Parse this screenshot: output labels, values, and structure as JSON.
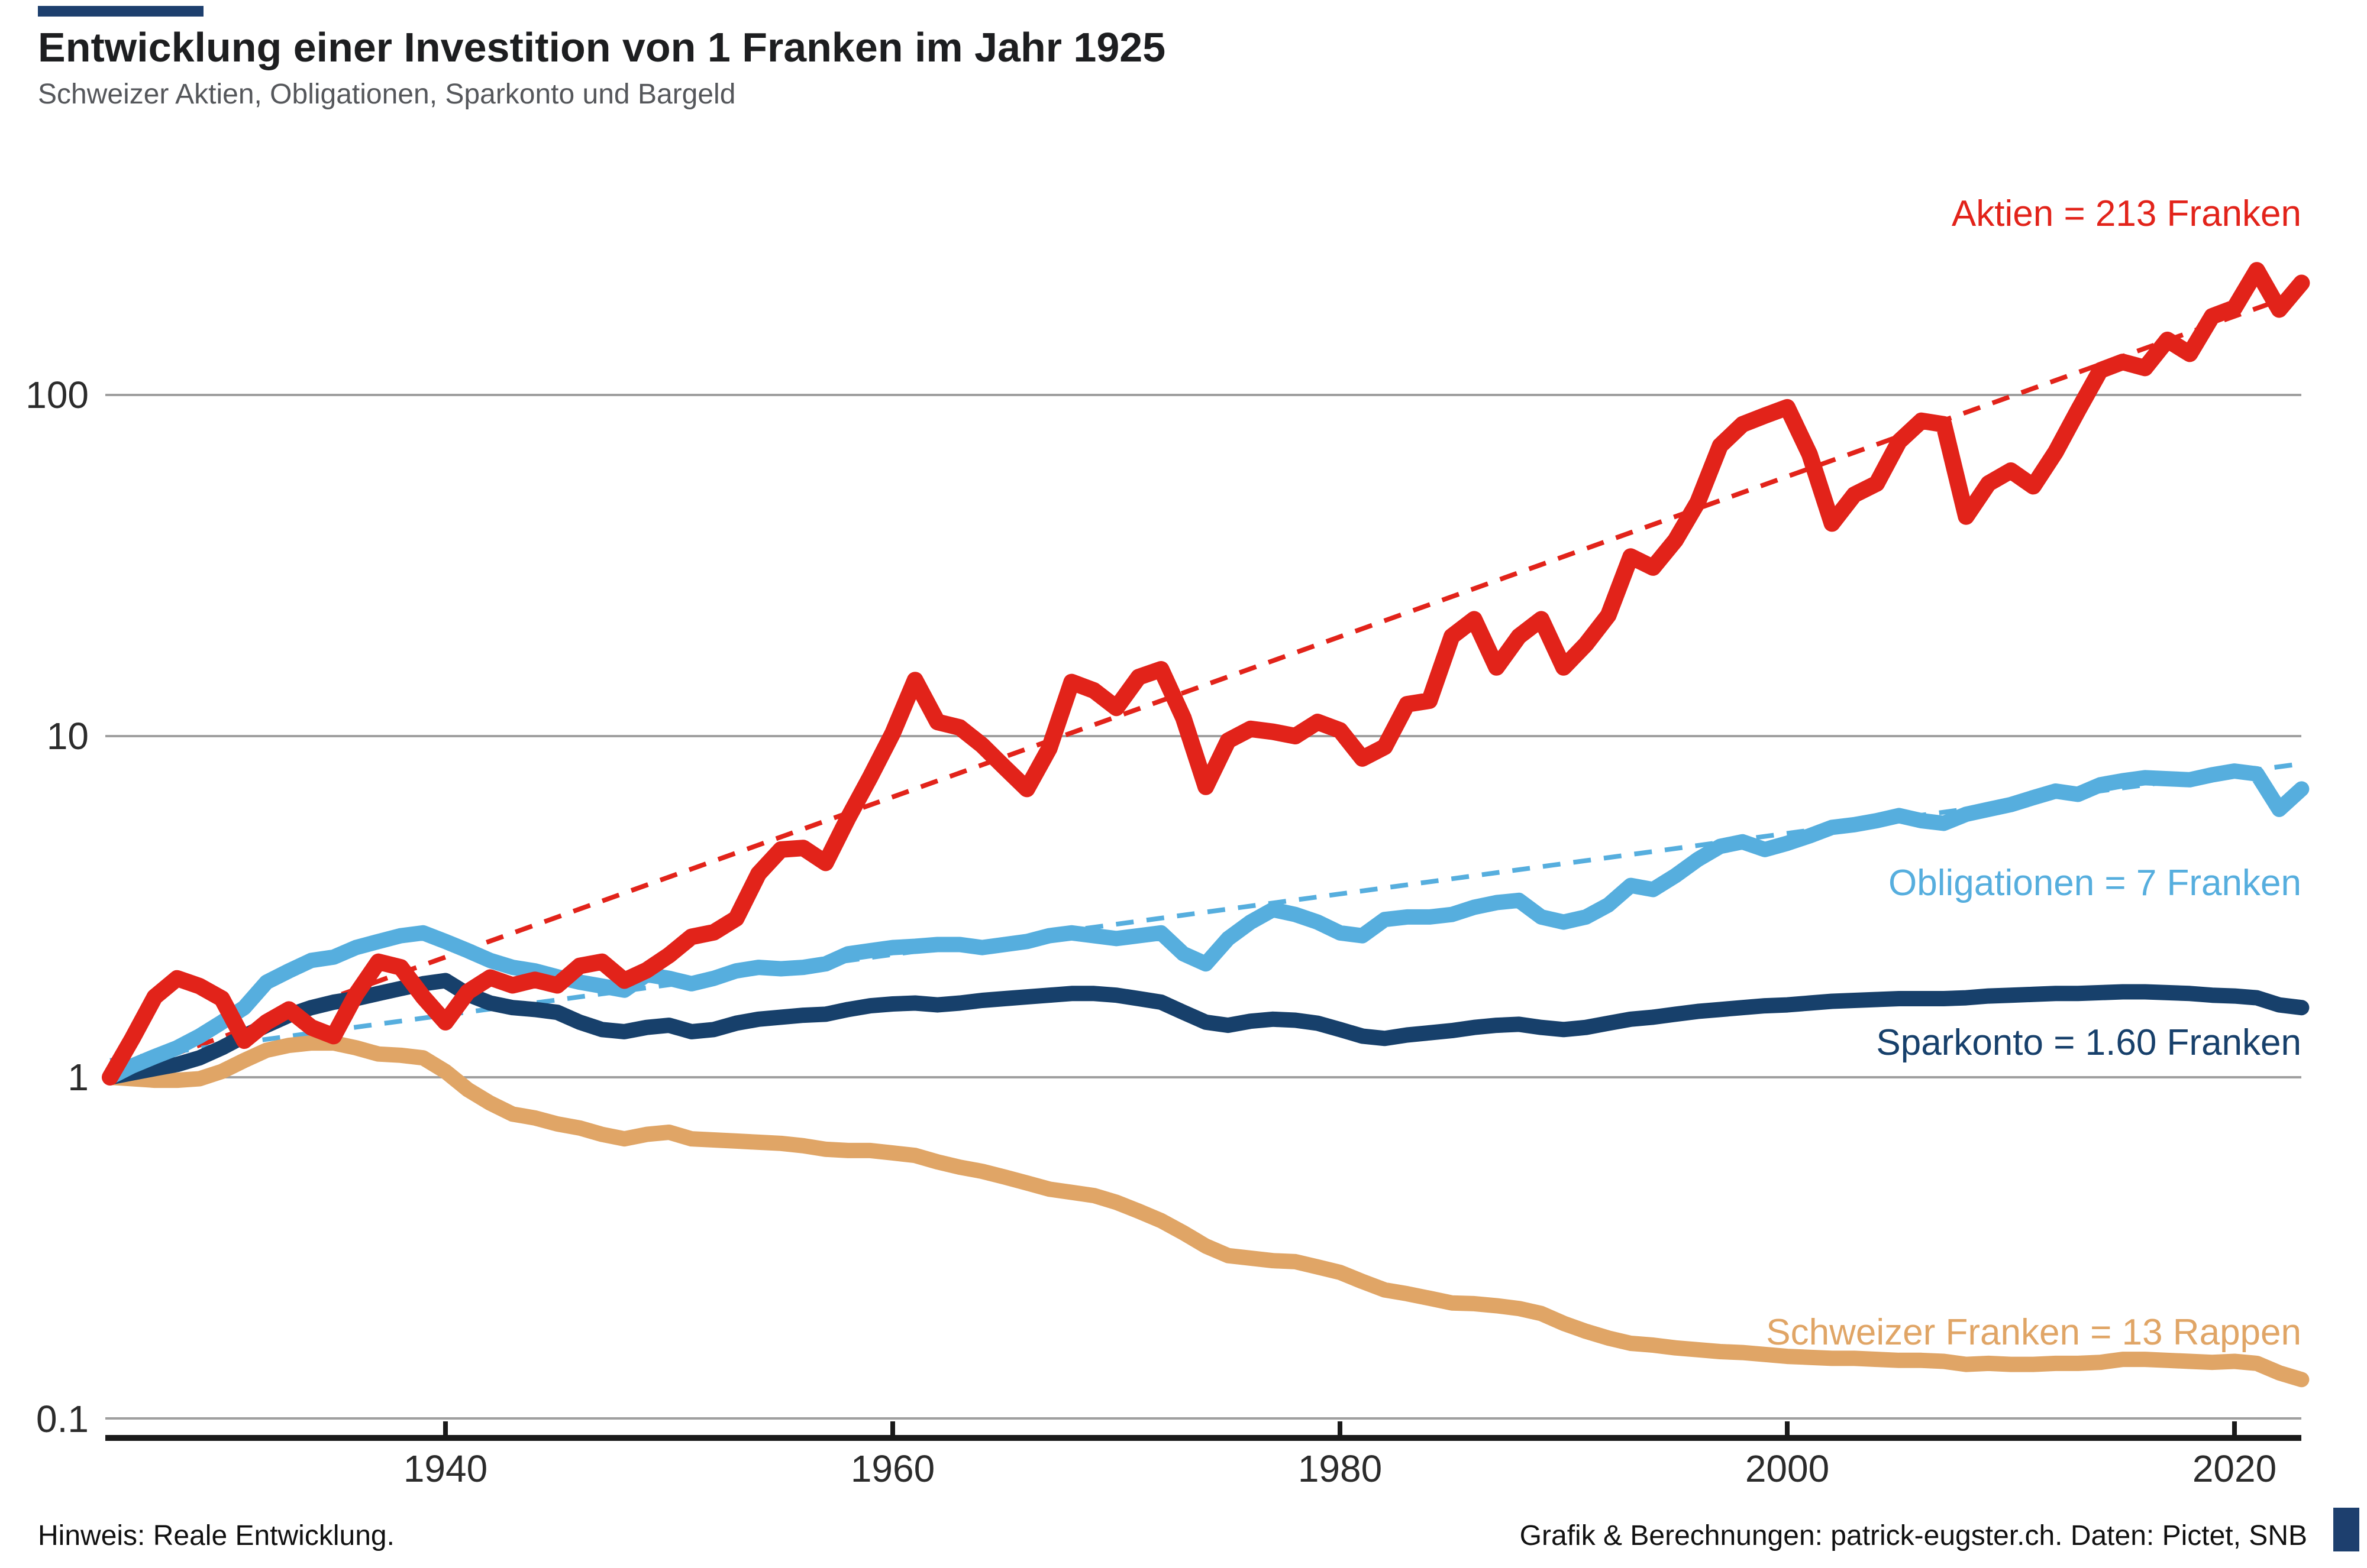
{
  "header": {
    "title": "Entwicklung einer Investition von 1 Franken im Jahr 1925",
    "subtitle": "Schweizer Aktien, Obligationen, Sparkonto und Bargeld",
    "accent_color": "#1d3f6e"
  },
  "axis": {
    "y_labels": [
      "100",
      "10",
      "1",
      "0.1"
    ],
    "x_labels": [
      "1940",
      "1960",
      "1980",
      "2000",
      "2020"
    ]
  },
  "footer": {
    "note": "Hinweis: Reale Entwicklung.",
    "credit": "Grafik & Berechnungen: patrick-eugster.ch. Daten: Pictet, SNB"
  },
  "chart_data": {
    "type": "line",
    "title": "Entwicklung einer Investition von 1 Franken im Jahr 1925",
    "subtitle": "Schweizer Aktien, Obligationen, Sparkonto und Bargeld",
    "yscale": "log",
    "ylim": [
      0.09,
      320
    ],
    "grid_values": [
      100,
      10,
      1,
      0.1
    ],
    "x_start": 1925,
    "x_step": 1,
    "x_end": 2023,
    "x_ticks": [
      1940,
      1960,
      1980,
      2000,
      2020
    ],
    "grid_color": "#9f9f9f",
    "axis_color": "#1a1a1a",
    "series": [
      {
        "name": "Aktien",
        "label": "Aktien = 213 Franken",
        "end_value_text": "213 Franken",
        "color": "#e2231a",
        "values": [
          1.0,
          1.3,
          1.72,
          1.95,
          1.85,
          1.7,
          1.28,
          1.45,
          1.58,
          1.4,
          1.32,
          1.75,
          2.18,
          2.1,
          1.72,
          1.45,
          1.78,
          1.96,
          1.86,
          1.93,
          1.86,
          2.12,
          2.18,
          1.92,
          2.06,
          2.28,
          2.58,
          2.66,
          2.92,
          3.95,
          4.65,
          4.7,
          4.25,
          5.75,
          7.6,
          10.2,
          14.6,
          11.0,
          10.6,
          9.4,
          8.1,
          7.0,
          9.2,
          14.4,
          13.6,
          12.1,
          14.9,
          15.7,
          11.3,
          7.1,
          9.7,
          10.5,
          10.3,
          10.0,
          11.0,
          10.4,
          8.6,
          9.3,
          12.4,
          12.7,
          19.6,
          22.0,
          15.9,
          19.6,
          22.0,
          15.9,
          18.6,
          22.6,
          33.6,
          31.2,
          37.5,
          48.5,
          71,
          82,
          87,
          92,
          67,
          42,
          51,
          55,
          73,
          84,
          82,
          44,
          55,
          60,
          54,
          68,
          90,
          118,
          125,
          120,
          145,
          132,
          170,
          180,
          232,
          178,
          213
        ]
      },
      {
        "name": "Obligationen",
        "label": "Obligationen = 7 Franken",
        "end_value_text": "7 Franken",
        "color": "#56aede",
        "values": [
          1.0,
          1.08,
          1.15,
          1.22,
          1.32,
          1.45,
          1.6,
          1.9,
          2.05,
          2.2,
          2.25,
          2.4,
          2.5,
          2.6,
          2.65,
          2.5,
          2.35,
          2.2,
          2.1,
          2.05,
          1.97,
          1.9,
          1.85,
          1.8,
          2.0,
          1.95,
          1.88,
          1.95,
          2.05,
          2.1,
          2.08,
          2.1,
          2.15,
          2.3,
          2.35,
          2.4,
          2.42,
          2.45,
          2.45,
          2.4,
          2.45,
          2.5,
          2.6,
          2.65,
          2.6,
          2.55,
          2.6,
          2.65,
          2.3,
          2.15,
          2.55,
          2.85,
          3.1,
          3.0,
          2.85,
          2.65,
          2.6,
          2.9,
          2.95,
          2.95,
          3.0,
          3.15,
          3.25,
          3.3,
          2.95,
          2.85,
          2.95,
          3.2,
          3.65,
          3.55,
          3.9,
          4.35,
          4.75,
          4.9,
          4.65,
          4.85,
          5.1,
          5.4,
          5.5,
          5.65,
          5.85,
          5.65,
          5.55,
          5.9,
          6.1,
          6.3,
          6.6,
          6.9,
          6.75,
          7.2,
          7.4,
          7.55,
          7.5,
          7.45,
          7.7,
          7.9,
          7.75,
          6.1,
          7.0
        ]
      },
      {
        "name": "Sparkonto",
        "label": "Sparkonto = 1.60 Franken",
        "end_value_text": "1.60 Franken",
        "color": "#17406b",
        "values": [
          1.0,
          1.03,
          1.06,
          1.09,
          1.14,
          1.22,
          1.32,
          1.42,
          1.52,
          1.6,
          1.66,
          1.7,
          1.76,
          1.82,
          1.88,
          1.92,
          1.75,
          1.65,
          1.6,
          1.58,
          1.55,
          1.45,
          1.38,
          1.36,
          1.4,
          1.42,
          1.36,
          1.38,
          1.44,
          1.48,
          1.5,
          1.52,
          1.53,
          1.58,
          1.62,
          1.64,
          1.65,
          1.63,
          1.65,
          1.68,
          1.7,
          1.72,
          1.74,
          1.76,
          1.76,
          1.74,
          1.7,
          1.66,
          1.55,
          1.45,
          1.42,
          1.46,
          1.48,
          1.47,
          1.44,
          1.38,
          1.32,
          1.3,
          1.33,
          1.35,
          1.37,
          1.4,
          1.42,
          1.43,
          1.4,
          1.38,
          1.4,
          1.44,
          1.48,
          1.5,
          1.53,
          1.56,
          1.58,
          1.6,
          1.62,
          1.63,
          1.65,
          1.67,
          1.68,
          1.69,
          1.7,
          1.7,
          1.7,
          1.71,
          1.73,
          1.74,
          1.75,
          1.76,
          1.76,
          1.77,
          1.78,
          1.78,
          1.77,
          1.76,
          1.74,
          1.73,
          1.71,
          1.63,
          1.6
        ]
      },
      {
        "name": "Schweizer Franken (Bargeld)",
        "label": "Schweizer Franken = 13 Rappen",
        "end_value_text": "13 Rappen",
        "color": "#e0a566",
        "values": [
          1.0,
          0.99,
          0.98,
          0.98,
          0.99,
          1.04,
          1.12,
          1.2,
          1.24,
          1.26,
          1.26,
          1.22,
          1.17,
          1.16,
          1.14,
          1.04,
          0.92,
          0.84,
          0.78,
          0.76,
          0.73,
          0.71,
          0.68,
          0.66,
          0.68,
          0.69,
          0.66,
          0.655,
          0.65,
          0.645,
          0.64,
          0.63,
          0.615,
          0.61,
          0.61,
          0.6,
          0.59,
          0.565,
          0.545,
          0.53,
          0.51,
          0.49,
          0.47,
          0.46,
          0.45,
          0.43,
          0.405,
          0.38,
          0.35,
          0.32,
          0.3,
          0.295,
          0.29,
          0.288,
          0.278,
          0.268,
          0.252,
          0.238,
          0.232,
          0.225,
          0.218,
          0.217,
          0.214,
          0.21,
          0.203,
          0.19,
          0.18,
          0.172,
          0.166,
          0.164,
          0.161,
          0.159,
          0.157,
          0.156,
          0.154,
          0.152,
          0.151,
          0.15,
          0.15,
          0.149,
          0.148,
          0.148,
          0.147,
          0.144,
          0.145,
          0.144,
          0.144,
          0.145,
          0.145,
          0.146,
          0.149,
          0.149,
          0.148,
          0.147,
          0.146,
          0.147,
          0.145,
          0.136,
          0.13
        ]
      }
    ],
    "trend_lines": [
      {
        "series": "Aktien",
        "color": "#e2231a",
        "style": "dashed",
        "from": {
          "year": 1925,
          "value": 1.0
        },
        "to": {
          "year": 2023,
          "value": 200
        }
      },
      {
        "series": "Obligationen",
        "color": "#56aede",
        "style": "dashed",
        "from": {
          "year": 1925,
          "value": 1.12
        },
        "to": {
          "year": 2023,
          "value": 8.3
        }
      }
    ],
    "legend_position": "annotations-right",
    "grid": "horizontal-only"
  }
}
